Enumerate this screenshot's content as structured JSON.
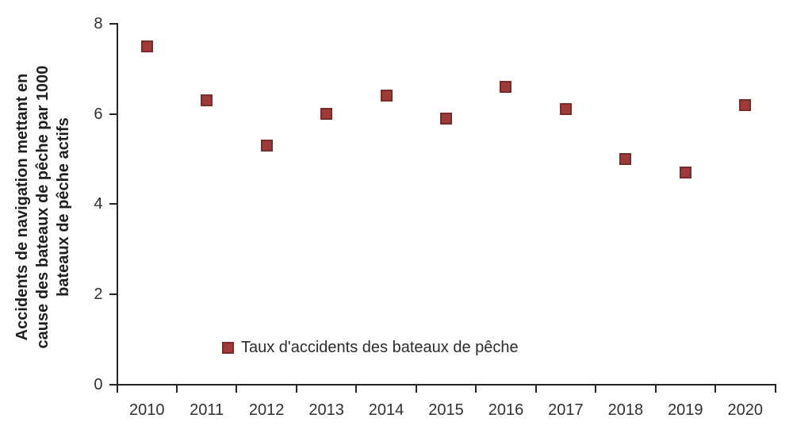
{
  "chart_data": {
    "type": "scatter",
    "title": "",
    "xlabel": "",
    "ylabel": "Accidents de navigation mettant en\ncause des bateaux de pêche par 1000\nbateaux de pêche actifs",
    "categories": [
      "2010",
      "2011",
      "2012",
      "2013",
      "2014",
      "2015",
      "2016",
      "2017",
      "2018",
      "2019",
      "2020"
    ],
    "series": [
      {
        "name": "Taux d'accidents des bateaux de pêche",
        "values": [
          7.5,
          6.3,
          5.3,
          6.0,
          6.4,
          5.9,
          6.6,
          6.1,
          5.0,
          4.7,
          6.2
        ],
        "marker": "square",
        "marker_fill": "#9E3B38",
        "marker_border": "#7A2C2A"
      }
    ],
    "ylim": [
      0,
      8
    ],
    "yticks": [
      0,
      2,
      4,
      6,
      8
    ],
    "grid": false,
    "legend_position": "inside-bottom-left",
    "axis_color": "#262626",
    "text_color": "#303030"
  }
}
